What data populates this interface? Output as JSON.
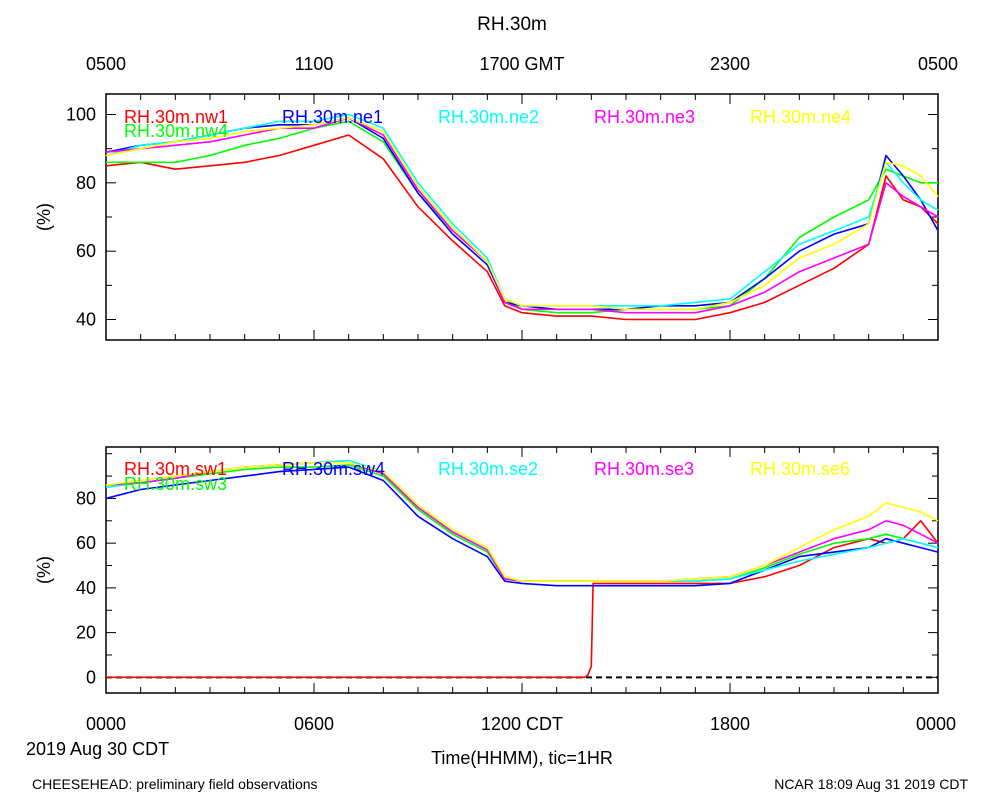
{
  "title": "RH.30m",
  "top_axis_ticks": [
    "0500",
    "1100",
    "1700 GMT",
    "2300",
    "0500"
  ],
  "bottom_axis_ticks": [
    "0000",
    "0600",
    "1200 CDT",
    "1800",
    "0000"
  ],
  "date_label": "2019 Aug 30 CDT",
  "xlabel": "Time(HHMM), tic=1HR",
  "footer_left": "CHEESEHEAD: preliminary field observations",
  "footer_right": "NCAR 18:09 Aug 31 2019 CDT",
  "colors": {
    "red": "#ff0000",
    "blue": "#0000ff",
    "green": "#00ff00",
    "cyan": "#00ffff",
    "magenta": "#ff00ff",
    "yellow": "#ffff00"
  },
  "chart_data": [
    {
      "type": "line",
      "panel": "top",
      "ylabel": "(%)",
      "xlim": [
        0,
        24
      ],
      "ylim": [
        34,
        106
      ],
      "yticks": [
        40,
        60,
        80,
        100
      ],
      "x": [
        0,
        1,
        2,
        3,
        4,
        5,
        6,
        7,
        8,
        9,
        10,
        11,
        11.5,
        12,
        13,
        14,
        15,
        16,
        17,
        18,
        19,
        20,
        21,
        22,
        22.5,
        23,
        23.5,
        24
      ],
      "series": [
        {
          "name": "RH.30m.nw1",
          "color": "red",
          "values": [
            85,
            86,
            84,
            85,
            86,
            88,
            91,
            94,
            87,
            73,
            63,
            54,
            44,
            42,
            41,
            41,
            40,
            40,
            40,
            42,
            45,
            50,
            55,
            62,
            82,
            75,
            73,
            68
          ]
        },
        {
          "name": "RH.30m.nw4",
          "color": "green",
          "values": [
            86,
            86,
            86,
            88,
            91,
            93,
            96,
            98,
            92,
            77,
            66,
            57,
            46,
            43,
            42,
            42,
            43,
            43,
            43,
            44,
            52,
            64,
            70,
            75,
            84,
            82,
            80,
            80
          ]
        },
        {
          "name": "RH.30m.ne1",
          "color": "blue",
          "values": [
            89,
            91,
            92,
            94,
            96,
            97,
            97,
            99,
            93,
            77,
            65,
            56,
            45,
            44,
            43,
            43,
            43,
            44,
            44,
            45,
            52,
            60,
            65,
            68,
            88,
            82,
            75,
            66
          ]
        },
        {
          "name": "RH.30m.ne2",
          "color": "cyan",
          "values": [
            88,
            91,
            92,
            94,
            96,
            98,
            98,
            100,
            96,
            80,
            68,
            58,
            46,
            44,
            44,
            44,
            44,
            44,
            45,
            46,
            54,
            62,
            66,
            70,
            86,
            80,
            75,
            72
          ]
        },
        {
          "name": "RH.30m.ne3",
          "color": "magenta",
          "values": [
            89,
            90,
            91,
            92,
            94,
            96,
            96,
            99,
            94,
            78,
            66,
            57,
            45,
            43,
            43,
            43,
            42,
            42,
            42,
            44,
            48,
            54,
            58,
            62,
            80,
            76,
            73,
            70
          ]
        },
        {
          "name": "RH.30m.ne4",
          "color": "yellow",
          "values": [
            88,
            90,
            92,
            93,
            95,
            96,
            97,
            99,
            95,
            79,
            67,
            57,
            46,
            44,
            44,
            44,
            43,
            43,
            43,
            45,
            50,
            58,
            62,
            68,
            86,
            85,
            82,
            76
          ]
        }
      ]
    },
    {
      "type": "line",
      "panel": "bottom",
      "ylabel": "(%)",
      "xlim": [
        0,
        24
      ],
      "ylim": [
        -7,
        103
      ],
      "yticks": [
        0,
        20,
        40,
        60,
        80
      ],
      "reference_line": 0,
      "x": [
        0,
        1,
        2,
        3,
        4,
        5,
        6,
        7,
        8,
        9,
        10,
        11,
        11.5,
        12,
        13,
        14,
        15,
        16,
        17,
        18,
        19,
        20,
        21,
        22,
        22.5,
        23,
        23.5,
        24
      ],
      "series": [
        {
          "name": "RH.30m.sw1",
          "color": "red",
          "x": [
            0,
            13.8,
            13.9,
            14.0,
            14.05,
            15,
            16,
            17,
            18,
            19,
            20,
            21,
            22,
            22.5,
            23,
            23.5,
            24
          ],
          "values": [
            0,
            0,
            1,
            5,
            42,
            42,
            42,
            42,
            42,
            45,
            50,
            58,
            62,
            60,
            62,
            70,
            60
          ]
        },
        {
          "name": "RH.30m.sw3",
          "color": "green",
          "values": [
            86,
            87,
            89,
            91,
            93,
            94,
            94,
            95,
            90,
            75,
            64,
            56,
            44,
            43,
            43,
            43,
            43,
            43,
            43,
            44,
            49,
            55,
            60,
            62,
            64,
            62,
            60,
            58
          ]
        },
        {
          "name": "RH.30m.sw4",
          "color": "blue",
          "values": [
            80,
            84,
            86,
            88,
            90,
            92,
            93,
            94,
            88,
            72,
            62,
            54,
            43,
            42,
            41,
            41,
            41,
            41,
            41,
            42,
            48,
            54,
            56,
            58,
            62,
            60,
            58,
            56
          ]
        },
        {
          "name": "RH.30m.se2",
          "color": "cyan",
          "values": [
            85,
            87,
            89,
            92,
            94,
            95,
            96,
            97,
            92,
            76,
            65,
            57,
            44,
            43,
            43,
            43,
            43,
            43,
            43,
            44,
            48,
            52,
            55,
            58,
            60,
            62,
            60,
            58
          ]
        },
        {
          "name": "RH.30m.se3",
          "color": "magenta",
          "values": [
            86,
            87,
            89,
            92,
            94,
            95,
            96,
            96,
            91,
            76,
            65,
            57,
            44,
            43,
            43,
            43,
            43,
            43,
            44,
            45,
            50,
            56,
            62,
            66,
            70,
            68,
            64,
            60
          ]
        },
        {
          "name": "RH.30m.se6",
          "color": "yellow",
          "values": [
            86,
            88,
            90,
            92,
            94,
            95,
            96,
            96,
            92,
            77,
            66,
            58,
            45,
            43,
            43,
            43,
            43,
            43,
            44,
            45,
            50,
            58,
            66,
            72,
            78,
            76,
            74,
            70
          ]
        }
      ]
    }
  ]
}
